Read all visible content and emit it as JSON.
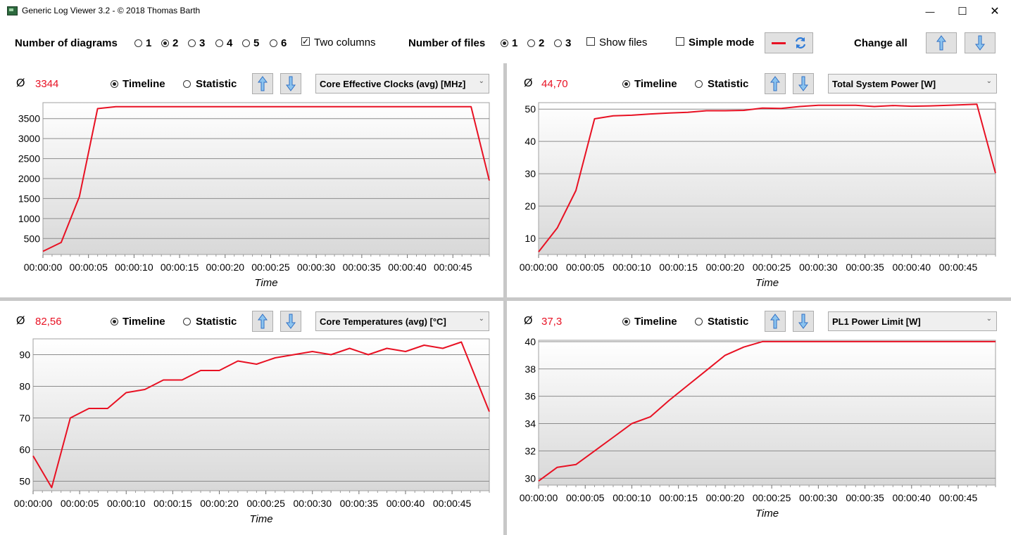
{
  "window": {
    "title": "Generic Log Viewer 3.2 - © 2018 Thomas Barth",
    "minimize": "—",
    "maximize": "☐",
    "close": "✕"
  },
  "toolbar": {
    "diagrams_label": "Number of diagrams",
    "diagram_options": [
      "1",
      "2",
      "3",
      "4",
      "5",
      "6"
    ],
    "diagrams_selected": "2",
    "two_columns_label": "Two columns",
    "two_columns_checked": true,
    "files_label": "Number of files",
    "file_options": [
      "1",
      "2",
      "3"
    ],
    "files_selected": "1",
    "show_files_label": "Show files",
    "simple_mode_label": "Simple mode",
    "change_all_label": "Change all",
    "line_color": "#e81123"
  },
  "panels": [
    {
      "avg_symbol": "Ø",
      "avg_value": "3344",
      "timeline_label": "Timeline",
      "statistic_label": "Statistic",
      "mode_selected": "Timeline",
      "sensor": "Core Effective Clocks (avg) [MHz]",
      "x_label": "Time",
      "chart_data": {
        "type": "line",
        "xlabel": "Time",
        "ylabel": "",
        "x": [
          0,
          2,
          4,
          6,
          8,
          10,
          12,
          14,
          16,
          18,
          20,
          22,
          24,
          26,
          28,
          30,
          32,
          34,
          36,
          38,
          40,
          42,
          44,
          47,
          49
        ],
        "values": [
          180,
          400,
          1550,
          3750,
          3800,
          3800,
          3800,
          3800,
          3800,
          3800,
          3800,
          3800,
          3800,
          3800,
          3800,
          3800,
          3800,
          3800,
          3800,
          3800,
          3800,
          3800,
          3800,
          3800,
          1950
        ],
        "xlim": [
          0,
          49
        ],
        "ylim": [
          100,
          3900
        ],
        "y_ticks": [
          500,
          1000,
          1500,
          2000,
          2500,
          3000,
          3500
        ],
        "x_tick_labels": [
          "00:00:00",
          "00:00:05",
          "00:00:10",
          "00:00:15",
          "00:00:20",
          "00:00:25",
          "00:00:30",
          "00:00:35",
          "00:00:40",
          "00:00:45"
        ],
        "grid": true,
        "color": "#e81123"
      }
    },
    {
      "avg_symbol": "Ø",
      "avg_value": "44,70",
      "timeline_label": "Timeline",
      "statistic_label": "Statistic",
      "mode_selected": "Timeline",
      "sensor": "Total System Power [W]",
      "x_label": "Time",
      "chart_data": {
        "type": "line",
        "xlabel": "Time",
        "ylabel": "",
        "x": [
          0,
          2,
          4,
          6,
          8,
          10,
          12,
          14,
          16,
          18,
          20,
          22,
          24,
          26,
          28,
          30,
          32,
          34,
          36,
          38,
          40,
          42,
          44,
          47,
          49
        ],
        "values": [
          5.8,
          13.2,
          24.8,
          47.0,
          47.9,
          48.1,
          48.5,
          48.8,
          49.0,
          49.5,
          49.5,
          49.6,
          50.3,
          50.2,
          50.8,
          51.2,
          51.2,
          51.2,
          50.8,
          51.1,
          50.9,
          51.0,
          51.2,
          51.5,
          30.2
        ],
        "xlim": [
          0,
          49
        ],
        "ylim": [
          5,
          52
        ],
        "y_ticks": [
          10,
          20,
          30,
          40,
          50
        ],
        "x_tick_labels": [
          "00:00:00",
          "00:00:05",
          "00:00:10",
          "00:00:15",
          "00:00:20",
          "00:00:25",
          "00:00:30",
          "00:00:35",
          "00:00:40",
          "00:00:45"
        ],
        "grid": true,
        "color": "#e81123"
      }
    },
    {
      "avg_symbol": "Ø",
      "avg_value": "82,56",
      "timeline_label": "Timeline",
      "statistic_label": "Statistic",
      "mode_selected": "Timeline",
      "sensor": "Core Temperatures (avg) [°C]",
      "x_label": "Time",
      "chart_data": {
        "type": "line",
        "xlabel": "Time",
        "ylabel": "",
        "x": [
          0,
          2,
          4,
          6,
          8,
          10,
          12,
          14,
          16,
          18,
          20,
          22,
          24,
          26,
          28,
          30,
          32,
          34,
          36,
          38,
          40,
          42,
          44,
          46,
          49
        ],
        "values": [
          58,
          48,
          70,
          73,
          73,
          78,
          79,
          82,
          82,
          85,
          85,
          88,
          87,
          89,
          90,
          91,
          90,
          92,
          90,
          92,
          91,
          93,
          92,
          94,
          72
        ],
        "xlim": [
          0,
          49
        ],
        "ylim": [
          47,
          95
        ],
        "y_ticks": [
          50,
          60,
          70,
          80,
          90
        ],
        "x_tick_labels": [
          "00:00:00",
          "00:00:05",
          "00:00:10",
          "00:00:15",
          "00:00:20",
          "00:00:25",
          "00:00:30",
          "00:00:35",
          "00:00:40",
          "00:00:45"
        ],
        "grid": true,
        "color": "#e81123"
      }
    },
    {
      "avg_symbol": "Ø",
      "avg_value": "37,3",
      "timeline_label": "Timeline",
      "statistic_label": "Statistic",
      "mode_selected": "Timeline",
      "sensor": "PL1 Power Limit [W]",
      "x_label": "Time",
      "chart_data": {
        "type": "line",
        "xlabel": "Time",
        "ylabel": "",
        "x": [
          0,
          2,
          4,
          6,
          8,
          10,
          12,
          14,
          16,
          18,
          20,
          22,
          24,
          26,
          28,
          30,
          32,
          34,
          36,
          38,
          40,
          42,
          44,
          47,
          49
        ],
        "values": [
          29.8,
          30.8,
          31.0,
          32.0,
          33.0,
          34.0,
          34.5,
          35.7,
          36.8,
          37.9,
          39.0,
          39.6,
          40.0,
          40.0,
          40.0,
          40.0,
          40.0,
          40.0,
          40.0,
          40.0,
          40.0,
          40.0,
          40.0,
          40.0,
          40.0
        ],
        "xlim": [
          0,
          49
        ],
        "ylim": [
          29.5,
          40.1
        ],
        "y_ticks": [
          30,
          32,
          34,
          36,
          38,
          40
        ],
        "x_tick_labels": [
          "00:00:00",
          "00:00:05",
          "00:00:10",
          "00:00:15",
          "00:00:20",
          "00:00:25",
          "00:00:30",
          "00:00:35",
          "00:00:40",
          "00:00:45"
        ],
        "grid": true,
        "color": "#e81123"
      }
    }
  ]
}
